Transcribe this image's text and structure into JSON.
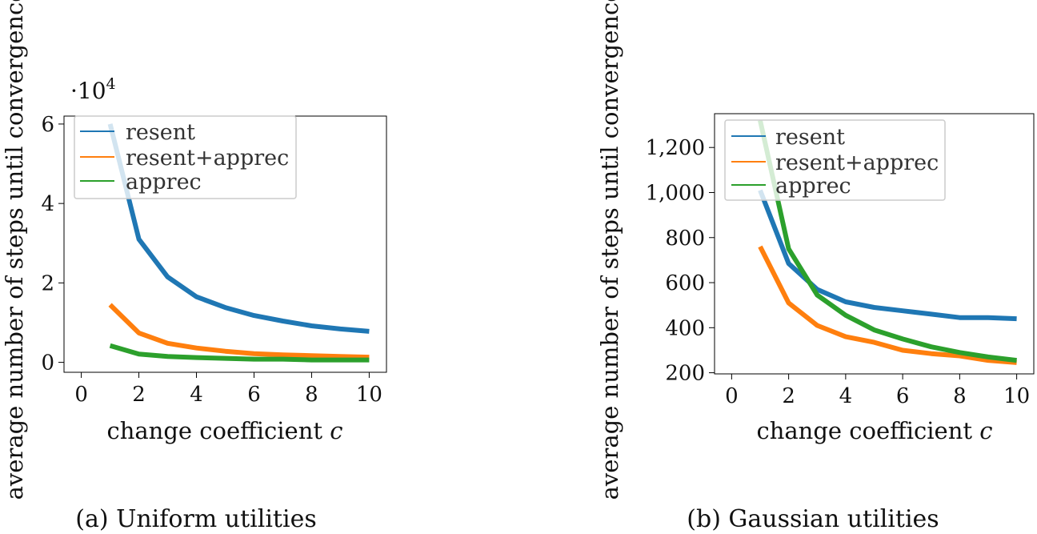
{
  "chart_data": [
    {
      "type": "line",
      "caption": "(a) Uniform utilities",
      "xlabel": "change coefficient",
      "xlabel_var": "c",
      "ylabel": "average number of steps until convergence",
      "y_exponent_base": "·10",
      "y_exponent_power": "4",
      "xlim": [
        -0.6,
        10.6
      ],
      "ylim": [
        -0.25,
        6.2
      ],
      "xticks": [
        0,
        2,
        4,
        6,
        8,
        10
      ],
      "xtick_labels": [
        "0",
        "2",
        "4",
        "6",
        "8",
        "10"
      ],
      "yticks": [
        0,
        2,
        4,
        6
      ],
      "ytick_labels": [
        "0",
        "2",
        "4",
        "6"
      ],
      "legend_position": "top-left",
      "x": [
        1,
        2,
        3,
        4,
        5,
        6,
        7,
        8,
        9,
        10
      ],
      "series": [
        {
          "name": "resent",
          "color": "#1f77b4",
          "values": [
            6.0,
            3.1,
            2.15,
            1.65,
            1.38,
            1.18,
            1.04,
            0.92,
            0.84,
            0.78
          ]
        },
        {
          "name": "resent+apprec",
          "color": "#ff7f0e",
          "values": [
            1.45,
            0.74,
            0.48,
            0.36,
            0.28,
            0.22,
            0.19,
            0.17,
            0.15,
            0.13
          ]
        },
        {
          "name": "apprec",
          "color": "#2ca02c",
          "values": [
            0.42,
            0.21,
            0.15,
            0.12,
            0.1,
            0.08,
            0.08,
            0.06,
            0.06,
            0.06
          ]
        }
      ]
    },
    {
      "type": "line",
      "caption": "(b) Gaussian utilities",
      "xlabel": "change coefficient",
      "xlabel_var": "c",
      "ylabel": "average number of steps until convergence",
      "xlim": [
        -0.6,
        10.6
      ],
      "ylim": [
        195,
        1350
      ],
      "xticks": [
        0,
        2,
        4,
        6,
        8,
        10
      ],
      "xtick_labels": [
        "0",
        "2",
        "4",
        "6",
        "8",
        "10"
      ],
      "yticks": [
        200,
        400,
        600,
        800,
        1000,
        1200
      ],
      "ytick_labels": [
        "200",
        "400",
        "600",
        "800",
        "1,000",
        "1,200"
      ],
      "legend_position": "top-left",
      "x": [
        1,
        2,
        3,
        4,
        5,
        6,
        7,
        8,
        9,
        10
      ],
      "series": [
        {
          "name": "resent",
          "color": "#1f77b4",
          "values": [
            1010,
            685,
            570,
            515,
            490,
            475,
            460,
            445,
            445,
            440
          ]
        },
        {
          "name": "resent+apprec",
          "color": "#ff7f0e",
          "values": [
            760,
            510,
            410,
            360,
            335,
            300,
            285,
            275,
            255,
            245
          ]
        },
        {
          "name": "apprec",
          "color": "#2ca02c",
          "values": [
            1320,
            750,
            545,
            455,
            390,
            350,
            315,
            290,
            270,
            255
          ]
        }
      ]
    }
  ]
}
